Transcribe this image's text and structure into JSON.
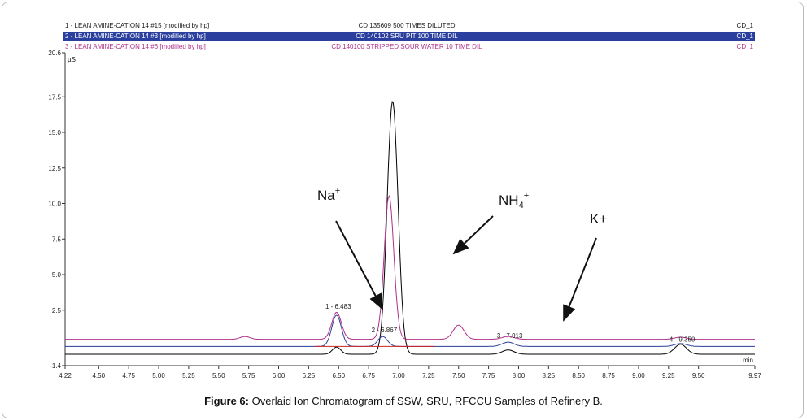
{
  "chart_data": {
    "type": "line",
    "xlabel": "min",
    "ylabel": "µS",
    "xlim": [
      4.22,
      9.97
    ],
    "ylim": [
      -1.4,
      20.6
    ],
    "x_ticks": [
      "4.22",
      "4.50",
      "4.75",
      "5.00",
      "5.25",
      "5.50",
      "5.75",
      "6.00",
      "6.25",
      "6.50",
      "6.75",
      "7.00",
      "7.25",
      "7.50",
      "7.75",
      "8.00",
      "8.25",
      "8.50",
      "8.75",
      "9.00",
      "9.25",
      "9.50",
      "9.97"
    ],
    "y_ticks": [
      "-1.4",
      "2.5",
      "5.0",
      "7.5",
      "10.0",
      "12.5",
      "15.0",
      "17.5",
      "20.6"
    ],
    "header_rows": [
      {
        "left": "1 - LEAN AMINE-CATION 14 #15 [modified by hp]",
        "center": "CD 135609 500 TIMES DILUTED",
        "right": "CD_1",
        "color": "#1a1a1a",
        "highlight": false
      },
      {
        "left": "2 - LEAN AMINE-CATION 14 #3 [modified by hp]",
        "center": "CD 140102 SRU PIT 100 TIME DIL",
        "right": "CD_1",
        "color": "#ffffff",
        "highlight": true
      },
      {
        "left": "3 - LEAN AMINE-CATION 14 #6 [modified by hp]",
        "center": "CD 140100 STRIPPED SOUR WATER 10 TIME DIL",
        "right": "CD_1",
        "color": "#b0308a",
        "highlight": false
      }
    ],
    "series": [
      {
        "color": "#000000",
        "baseline": -0.6,
        "peaks": [
          [
            6.483,
            0.5,
            0.035
          ],
          [
            6.95,
            17.8,
            0.045
          ],
          [
            7.913,
            0.3,
            0.05
          ],
          [
            9.35,
            0.7,
            0.05
          ]
        ]
      },
      {
        "color": "#2a3f9a",
        "baseline": -0.05,
        "peaks": [
          [
            6.483,
            2.2,
            0.04
          ],
          [
            6.867,
            0.7,
            0.04
          ],
          [
            7.913,
            0.3,
            0.05
          ],
          [
            9.35,
            0.2,
            0.05
          ]
        ]
      },
      {
        "color": "#b0308a",
        "baseline": 0.45,
        "peaks": [
          [
            5.72,
            0.2,
            0.04
          ],
          [
            6.483,
            1.9,
            0.04
          ],
          [
            6.92,
            10.1,
            0.04
          ],
          [
            7.5,
            1.0,
            0.045
          ],
          [
            7.913,
            0.2,
            0.05
          ],
          [
            9.35,
            0.15,
            0.05
          ]
        ]
      }
    ],
    "red_baseline": {
      "color": "#cc2222",
      "x": [
        6.3,
        7.3
      ],
      "y": [
        -0.05,
        -0.05
      ]
    },
    "peak_labels": [
      {
        "text": "1 - 6.483",
        "x": 6.483,
        "y": 2.6
      },
      {
        "text": "2 - 6.867",
        "x": 6.867,
        "y": 0.95
      },
      {
        "text": "3 - 7.913",
        "x": 7.913,
        "y": 0.55
      },
      {
        "text": "4 - 9.350",
        "x": 9.35,
        "y": 0.3
      }
    ],
    "annotations": [
      {
        "label": "Na",
        "sup": "+",
        "sub": ""
      },
      {
        "label": "NH",
        "sup": "+",
        "sub": "4"
      },
      {
        "label": "K+",
        "sup": "",
        "sub": ""
      }
    ]
  },
  "caption": {
    "label": "Figure 6:",
    "text": " Overlaid Ion Chromatogram of SSW, SRU, RFCCU Samples of Refinery B."
  }
}
